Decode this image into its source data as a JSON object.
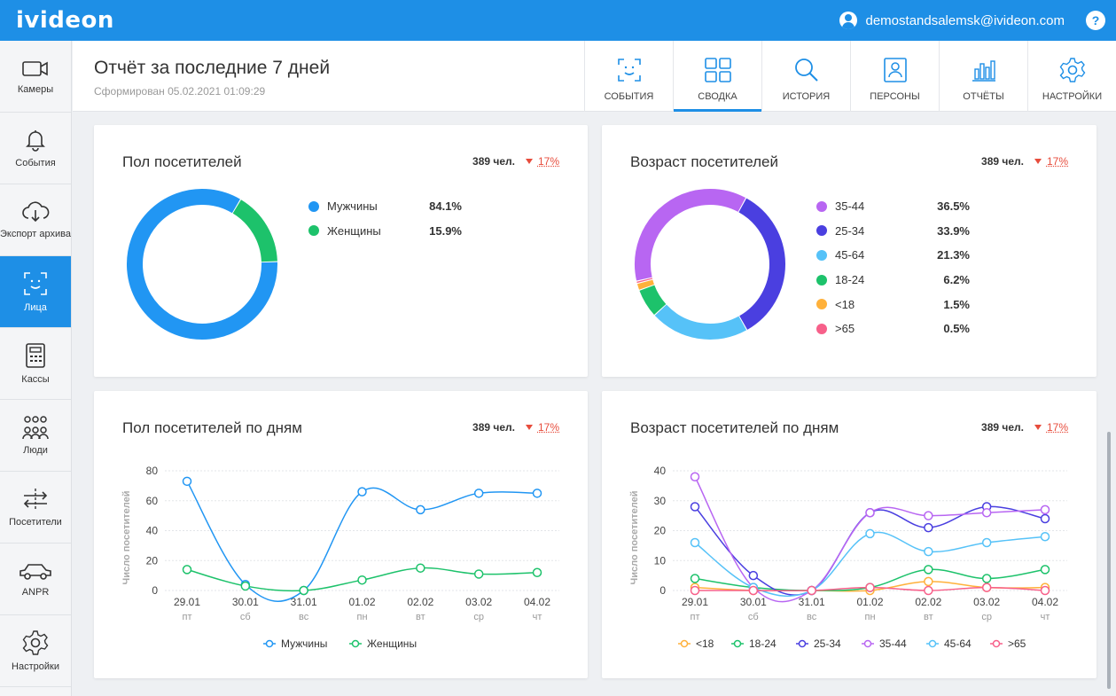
{
  "app": {
    "logo": "ivideon",
    "user_email": "demostandsalemsk@ivideon.com",
    "help_label": "?"
  },
  "sidebar": {
    "items": [
      {
        "label": "Камеры",
        "icon": "camera-icon"
      },
      {
        "label": "События",
        "icon": "bell-icon"
      },
      {
        "label": "Экспорт архива",
        "icon": "cloud-download-icon"
      },
      {
        "label": "Лица",
        "icon": "face-icon",
        "active": true
      },
      {
        "label": "Кассы",
        "icon": "cash-register-icon"
      },
      {
        "label": "Люди",
        "icon": "people-icon"
      },
      {
        "label": "Посетители",
        "icon": "visitors-icon"
      },
      {
        "label": "ANPR",
        "icon": "car-icon"
      },
      {
        "label": "Настройки",
        "icon": "gear-icon"
      }
    ]
  },
  "header": {
    "title": "Отчёт за последние 7 дней",
    "subtitle": "Сформирован 05.02.2021 01:09:29",
    "tabs": [
      {
        "label": "СОБЫТИЯ",
        "icon": "face-scan-icon"
      },
      {
        "label": "СВОДКА",
        "icon": "dashboard-icon",
        "active": true
      },
      {
        "label": "ИСТОРИЯ",
        "icon": "search-icon"
      },
      {
        "label": "ПЕРСОНЫ",
        "icon": "person-card-icon"
      },
      {
        "label": "ОТЧЁТЫ",
        "icon": "bar-chart-icon"
      },
      {
        "label": "НАСТРОЙКИ",
        "icon": "gear-icon"
      }
    ]
  },
  "colors": {
    "accent": "#1e8fe6",
    "men": "#2196f3",
    "women": "#1dc26b",
    "age_35_44": "#b866f2",
    "age_25_34": "#4a3fe0",
    "age_45_64": "#56c2f8",
    "age_18_24": "#1dc26b",
    "age_under_18": "#ffb13b",
    "age_over_65": "#f7608a",
    "negative": "#e74c3c"
  },
  "cards": {
    "gender": {
      "title": "Пол посетителей",
      "count": "389 чел.",
      "change": "17%"
    },
    "age": {
      "title": "Возраст посетителей",
      "count": "389 чел.",
      "change": "17%"
    },
    "gender_daily": {
      "title": "Пол посетителей по дням",
      "count": "389 чел.",
      "change": "17%"
    },
    "age_daily": {
      "title": "Возраст посетителей по дням",
      "count": "389 чел.",
      "change": "17%"
    }
  },
  "chart_data": [
    {
      "type": "pie",
      "categories": [
        "Мужчины",
        "Женщины"
      ],
      "labels": [
        "84.1%",
        "15.9%"
      ],
      "values": [
        84.1,
        15.9
      ],
      "legend": "right"
    },
    {
      "type": "pie",
      "categories": [
        "35-44",
        "25-34",
        "45-64",
        "18-24",
        "<18",
        ">65"
      ],
      "labels": [
        "36.5%",
        "33.9%",
        "21.3%",
        "6.2%",
        "1.5%",
        "0.5%"
      ],
      "values": [
        36.5,
        33.9,
        21.3,
        6.2,
        1.5,
        0.5
      ],
      "legend": "right"
    },
    {
      "type": "line",
      "x": [
        "29.01",
        "30.01",
        "31.01",
        "01.02",
        "02.02",
        "03.02",
        "04.02"
      ],
      "x_sub": [
        "пт",
        "сб",
        "вс",
        "пн",
        "вт",
        "ср",
        "чт"
      ],
      "ylabel": "Число посетителей",
      "ylim": [
        0,
        80
      ],
      "yticks": [
        0,
        20,
        40,
        60,
        80
      ],
      "grid": true,
      "legend": "bottom",
      "series": [
        {
          "name": "Мужчины",
          "values": [
            73,
            4,
            0,
            66,
            54,
            65,
            65
          ]
        },
        {
          "name": "Женщины",
          "values": [
            14,
            3,
            0,
            7,
            15,
            11,
            12
          ]
        }
      ]
    },
    {
      "type": "line",
      "x": [
        "29.01",
        "30.01",
        "31.01",
        "01.02",
        "02.02",
        "03.02",
        "04.02"
      ],
      "x_sub": [
        "пт",
        "сб",
        "вс",
        "пн",
        "вт",
        "ср",
        "чт"
      ],
      "ylabel": "Число посетителей",
      "ylim": [
        0,
        40
      ],
      "yticks": [
        0,
        10,
        20,
        30,
        40
      ],
      "grid": true,
      "legend": "bottom",
      "series": [
        {
          "name": "<18",
          "values": [
            1,
            0,
            0,
            0,
            3,
            1,
            1
          ]
        },
        {
          "name": "18-24",
          "values": [
            4,
            1,
            0,
            1,
            7,
            4,
            7
          ]
        },
        {
          "name": "25-34",
          "values": [
            28,
            5,
            0,
            26,
            21,
            28,
            24
          ]
        },
        {
          "name": "35-44",
          "values": [
            38,
            1,
            0,
            26,
            25,
            26,
            27
          ]
        },
        {
          "name": "45-64",
          "values": [
            16,
            1,
            0,
            19,
            13,
            16,
            18
          ]
        },
        {
          "name": ">65",
          "values": [
            0,
            0,
            0,
            1,
            0,
            1,
            0
          ]
        }
      ]
    }
  ]
}
